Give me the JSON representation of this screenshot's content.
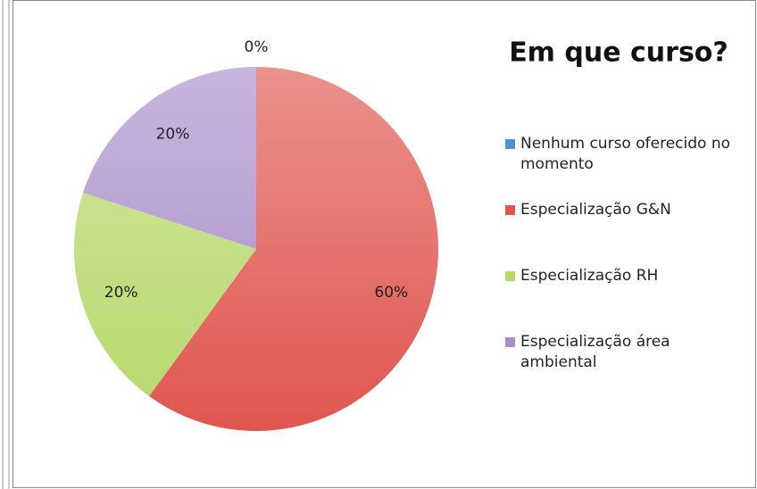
{
  "chart_data": {
    "type": "pie",
    "title": "Em que curso?",
    "categories": [
      "Nenhum curso oferecido no momento",
      "Especialização G&N",
      "Especialização RH",
      "Especialização área ambiental"
    ],
    "values": [
      0,
      60,
      20,
      20
    ],
    "value_labels": [
      "0%",
      "60%",
      "20%",
      "20%"
    ],
    "colors": [
      "#4f8fd6",
      "#e0564f",
      "#b6d96c",
      "#a88ecb"
    ],
    "legend": "right"
  }
}
